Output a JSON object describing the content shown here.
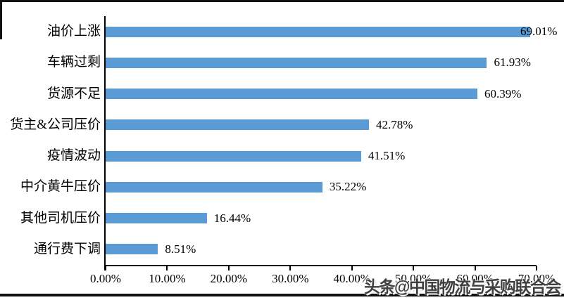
{
  "watermark": {
    "text": "头条@中国物流与采购联合会"
  },
  "chart_data": {
    "type": "bar",
    "orientation": "horizontal",
    "categories": [
      "油价上涨",
      "车辆过剩",
      "货源不足",
      "货主&公司压价",
      "疫情波动",
      "中介黄牛压价",
      "其他司机压价",
      "通行费下调"
    ],
    "values": [
      69.01,
      61.93,
      60.39,
      42.78,
      41.51,
      35.22,
      16.44,
      8.51
    ],
    "value_labels": [
      "69.01%",
      "61.93%",
      "60.39%",
      "42.78%",
      "41.51%",
      "35.22%",
      "16.44%",
      "8.51%"
    ],
    "x_ticks": [
      "0.00%",
      "10.00%",
      "20.00%",
      "30.00%",
      "40.00%",
      "50.00%",
      "60.00%",
      "70.00%"
    ],
    "x_tick_values": [
      0,
      10,
      20,
      30,
      40,
      50,
      60,
      70
    ],
    "xlim": [
      0,
      70
    ],
    "grid": false,
    "legend": null,
    "bar_color": "#5B9BD5",
    "axis_color": "#000000"
  }
}
